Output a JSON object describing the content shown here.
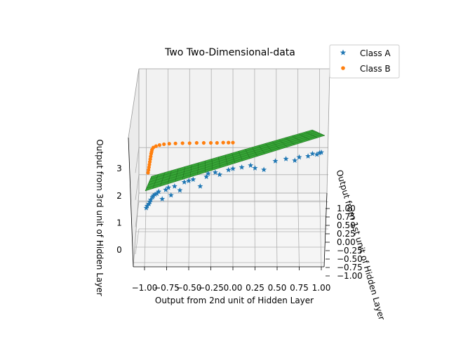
{
  "chart_data": {
    "type": "scatter",
    "title": "Two Two-Dimensional-data",
    "xlabel": "Output from 2nd unit of Hidden Layer",
    "ylabel": "Output from 1st unit of Hidden Layer",
    "zlabel": "Output from 3rd unit of Hidden Layer",
    "x_ticks": [
      "−1.00",
      "−0.75",
      "−0.50",
      "−0.25",
      "0.00",
      "0.25",
      "0.50",
      "0.75",
      "1.00"
    ],
    "y_ticks": [
      "−1.00",
      "−0.75",
      "−0.50",
      "−0.25",
      "0.00",
      "0.25",
      "0.50",
      "0.75",
      "1.00"
    ],
    "z_ticks": [
      "0",
      "1",
      "2",
      "3"
    ],
    "xlim": [
      -1,
      1
    ],
    "ylim": [
      -1,
      1
    ],
    "zlim": [
      -0.5,
      4
    ],
    "grid": true,
    "legend_position": "top-right",
    "series": [
      {
        "name": "Class A",
        "marker": "star",
        "color": "#1f77b4",
        "points": [
          [
            -0.98,
            1.55
          ],
          [
            -0.97,
            1.62
          ],
          [
            -0.95,
            1.7
          ],
          [
            -0.94,
            1.78
          ],
          [
            -0.93,
            1.85
          ],
          [
            -0.91,
            1.95
          ],
          [
            -0.9,
            2.0
          ],
          [
            -0.88,
            2.05
          ],
          [
            -0.86,
            2.08
          ],
          [
            -0.84,
            2.15
          ],
          [
            -0.8,
            1.88
          ],
          [
            -0.76,
            2.22
          ],
          [
            -0.73,
            2.3
          ],
          [
            -0.7,
            2.02
          ],
          [
            -0.66,
            2.35
          ],
          [
            -0.6,
            2.2
          ],
          [
            -0.55,
            2.5
          ],
          [
            -0.5,
            2.55
          ],
          [
            -0.45,
            2.6
          ],
          [
            -0.37,
            2.35
          ],
          [
            -0.3,
            2.7
          ],
          [
            -0.28,
            2.82
          ],
          [
            -0.2,
            2.86
          ],
          [
            -0.15,
            2.78
          ],
          [
            -0.05,
            2.95
          ],
          [
            0.0,
            3.0
          ],
          [
            0.1,
            3.05
          ],
          [
            0.2,
            3.12
          ],
          [
            0.25,
            3.02
          ],
          [
            0.35,
            2.96
          ],
          [
            0.48,
            3.28
          ],
          [
            0.6,
            3.36
          ],
          [
            0.7,
            3.3
          ],
          [
            0.75,
            3.42
          ],
          [
            0.85,
            3.46
          ],
          [
            0.9,
            3.55
          ],
          [
            0.95,
            3.52
          ],
          [
            0.98,
            3.58
          ],
          [
            1.0,
            3.6
          ]
        ]
      },
      {
        "name": "Class B",
        "marker": "dot",
        "color": "#ff7f0e",
        "points": [
          [
            -0.96,
            2.85
          ],
          [
            -0.955,
            2.95
          ],
          [
            -0.95,
            3.05
          ],
          [
            -0.945,
            3.15
          ],
          [
            -0.94,
            3.25
          ],
          [
            -0.935,
            3.35
          ],
          [
            -0.93,
            3.45
          ],
          [
            -0.925,
            3.55
          ],
          [
            -0.92,
            3.62
          ],
          [
            -0.915,
            3.7
          ],
          [
            -0.9,
            3.78
          ],
          [
            -0.87,
            3.83
          ],
          [
            -0.83,
            3.87
          ],
          [
            -0.78,
            3.9
          ],
          [
            -0.72,
            3.92
          ],
          [
            -0.65,
            3.93
          ],
          [
            -0.57,
            3.94
          ],
          [
            -0.49,
            3.94
          ],
          [
            -0.41,
            3.95
          ],
          [
            -0.33,
            3.95
          ],
          [
            -0.25,
            3.95
          ],
          [
            -0.18,
            3.95
          ],
          [
            -0.11,
            3.96
          ],
          [
            -0.05,
            3.96
          ],
          [
            0.0,
            3.96
          ]
        ]
      }
    ],
    "surface": {
      "type": "plane",
      "color": "#2ca02c"
    }
  }
}
